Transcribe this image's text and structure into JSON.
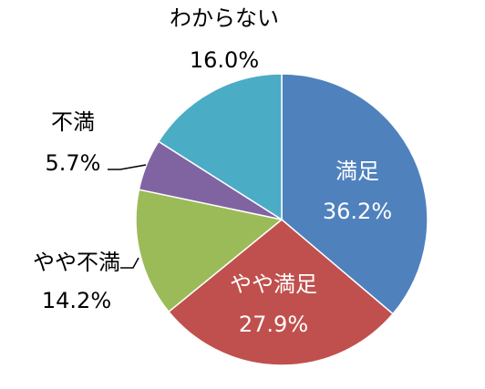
{
  "chart_data": {
    "type": "pie",
    "slices": [
      {
        "label": "満足",
        "value": 36.2,
        "value_text": "36.2%",
        "color": "#4F81BD"
      },
      {
        "label": "やや満足",
        "value": 27.9,
        "value_text": "27.9%",
        "color": "#C0504D"
      },
      {
        "label": "やや不満",
        "value": 14.2,
        "value_text": "14.2%",
        "color": "#9BBB59"
      },
      {
        "label": "不満",
        "value": 5.7,
        "value_text": "5.7%",
        "color": "#8064A2"
      },
      {
        "label": "わからない",
        "value": 16.0,
        "value_text": "16.0%",
        "color": "#4BACC6"
      }
    ],
    "legend": "none"
  }
}
